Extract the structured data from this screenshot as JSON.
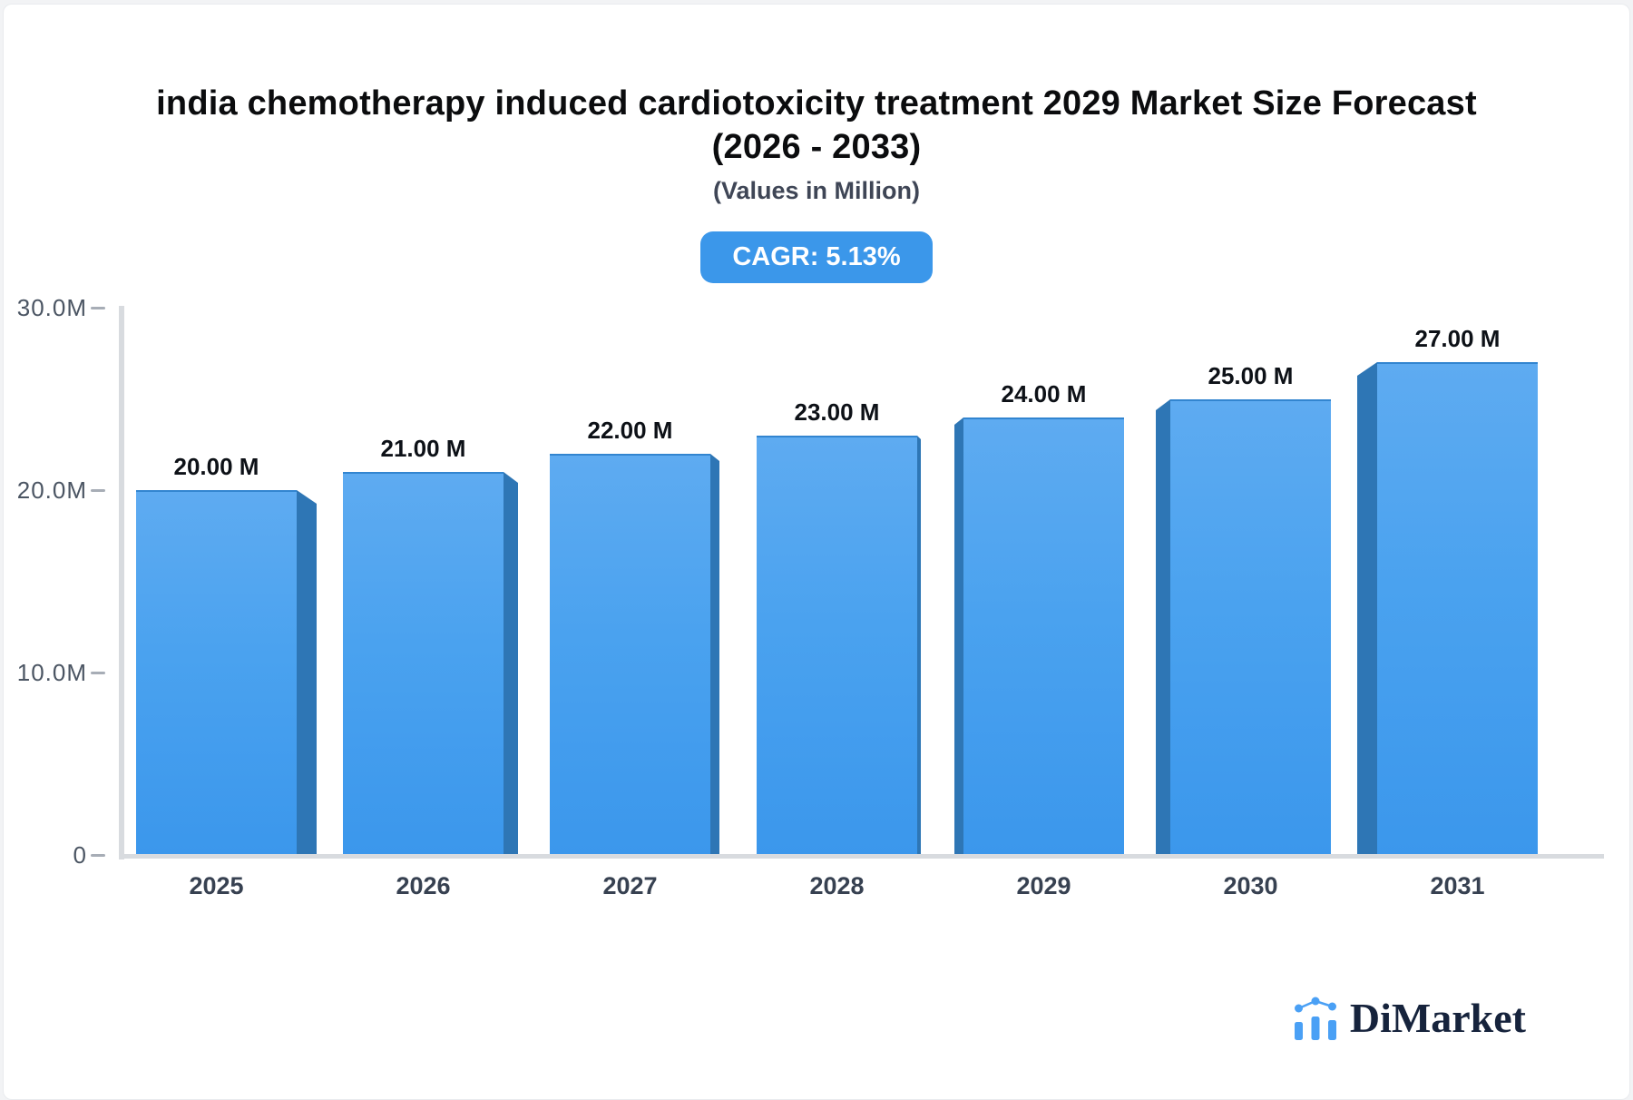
{
  "header": {
    "title_line1": "india chemotherapy induced cardiotoxicity treatment 2029 Market Size Forecast",
    "title_line2": "(2026 - 2033)",
    "subtitle": "(Values in Million)",
    "cagr_badge": "CAGR: 5.13%"
  },
  "chart_data": {
    "type": "bar",
    "title": "india chemotherapy induced cardiotoxicity treatment 2029 Market Size Forecast (2026 - 2033)",
    "subtitle": "(Values in Million)",
    "cagr_percent": 5.13,
    "categories": [
      "2025",
      "2026",
      "2027",
      "2028",
      "2029",
      "2030",
      "2031"
    ],
    "values": [
      20,
      21,
      22,
      23,
      24,
      25,
      27
    ],
    "value_labels": [
      "20.00 M",
      "21.00 M",
      "22.00 M",
      "23.00 M",
      "24.00 M",
      "25.00 M",
      "27.00 M"
    ],
    "unit": "Million",
    "xlabel": "",
    "ylabel": "",
    "ylim": [
      0,
      30
    ],
    "yticks": [
      {
        "label": "30.0M",
        "value": 30
      },
      {
        "label": "20.0M",
        "value": 20
      },
      {
        "label": "10.0M",
        "value": 10
      },
      {
        "label": "0",
        "value": 0
      }
    ],
    "grid": false,
    "legend": false,
    "bar_style": "3d-extruded"
  },
  "logo": {
    "text": "DiMarket",
    "icon": "bar-chart-logo-icon"
  },
  "colors": {
    "page_bg": "#F2F3F5",
    "card_bg": "#FFFFFF",
    "bar_face_top": "#5EABF1",
    "bar_face_bottom": "#3B97EC",
    "bar_side": "#2E76B5",
    "badge_bg": "#3B97EA",
    "badge_text": "#FFFFFF",
    "axis_line": "#D8DBDF",
    "tick_mark": "#A7ADB6",
    "y_label_text": "#4B5563",
    "x_label_text": "#374151",
    "value_label_text": "#0D1117",
    "title_text": "#0B0C0E",
    "subtitle_text": "#3F4656",
    "logo_text": "#16233C",
    "logo_icon_blue": "#4AA0F5"
  }
}
